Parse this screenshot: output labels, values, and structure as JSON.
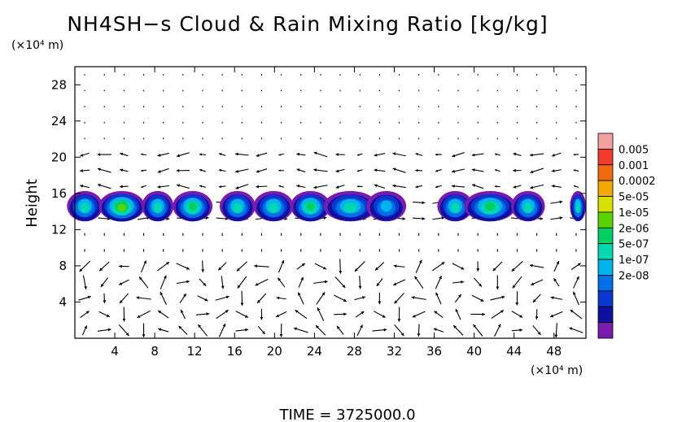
{
  "chart_data": {
    "type": "heatmap",
    "title": "NH4SH−s Cloud & Rain Mixing Ratio [kg/kg]",
    "y_unit": "(×10⁴ m)",
    "x_unit": "(×10⁴ m)",
    "ylabel": "Height",
    "xlabel": "",
    "x_ticks": [
      "4",
      "8",
      "12",
      "16",
      "20",
      "24",
      "28",
      "32",
      "36",
      "40",
      "44",
      "48"
    ],
    "y_ticks": [
      "4",
      "8",
      "12",
      "16",
      "20",
      "24",
      "28"
    ],
    "xlim": [
      0,
      51.2
    ],
    "ylim": [
      0,
      30
    ],
    "grid": false,
    "colorbar": {
      "labels": [
        "0.005",
        "0.001",
        "0.0002",
        "5e-05",
        "1e-05",
        "2e-06",
        "5e-07",
        "1e-07",
        "2e-08"
      ],
      "colors": [
        "#f4a0a0",
        "#f23a2a",
        "#f26a10",
        "#f5a800",
        "#d8e000",
        "#5ad400",
        "#00d060",
        "#00d8b0",
        "#00b4ec",
        "#0070e8",
        "#0838d0",
        "#1010a0",
        "#7a1ab0"
      ]
    },
    "cloud_band": {
      "base_height": 13,
      "top_height": 16,
      "clouds": [
        {
          "x": 1.0,
          "width": 2.6,
          "max": "1e-05"
        },
        {
          "x": 4.7,
          "width": 3.6,
          "max": "0.0002"
        },
        {
          "x": 8.3,
          "width": 2.2,
          "max": "1e-05"
        },
        {
          "x": 11.8,
          "width": 3.0,
          "max": "5e-05"
        },
        {
          "x": 16.3,
          "width": 2.6,
          "max": "1e-05"
        },
        {
          "x": 19.9,
          "width": 3.0,
          "max": "1e-05"
        },
        {
          "x": 23.6,
          "width": 3.0,
          "max": "5e-05"
        },
        {
          "x": 27.6,
          "width": 4.4,
          "max": "1e-05"
        },
        {
          "x": 31.2,
          "width": 3.0,
          "max": "2e-06"
        },
        {
          "x": 38.1,
          "width": 2.6,
          "max": "1e-05"
        },
        {
          "x": 41.6,
          "width": 4.2,
          "max": "5e-05"
        },
        {
          "x": 45.4,
          "width": 2.4,
          "max": "1e-05"
        },
        {
          "x": 50.4,
          "width": 2.0,
          "max": "1e-05"
        }
      ]
    },
    "wind_vectors": "shown"
  },
  "footer": {
    "time_label": "TIME = 3725000.0"
  }
}
